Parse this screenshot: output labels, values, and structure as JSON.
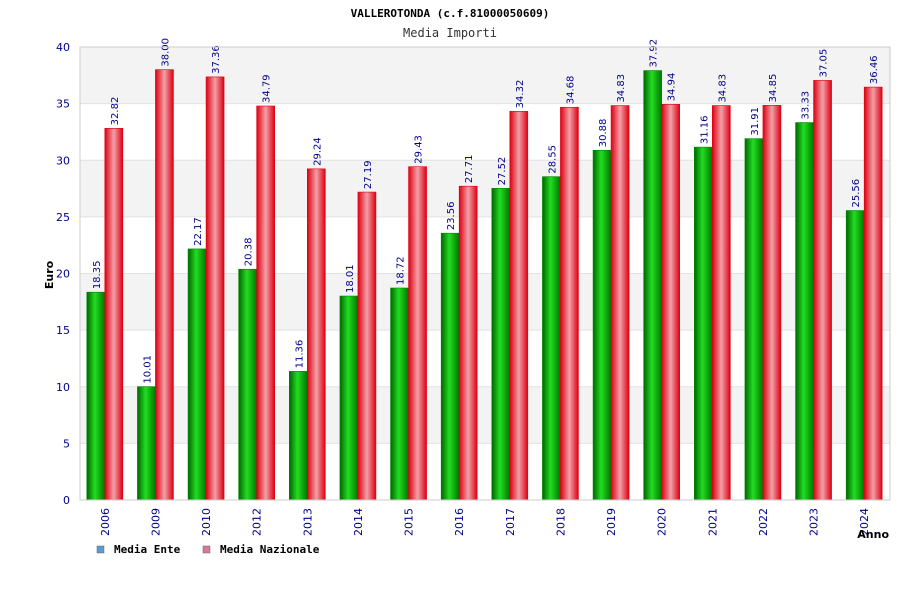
{
  "chart_data": {
    "type": "bar",
    "title": "VALLEROTONDA (c.f.81000050609)",
    "subtitle": "Media Importi",
    "xlabel": "Anno",
    "ylabel": "Euro",
    "ylim": [
      0,
      40
    ],
    "yticks": [
      "0",
      "5",
      "10",
      "15",
      "20",
      "25",
      "30",
      "35",
      "40"
    ],
    "grid": true,
    "legend_position": "bottom-left",
    "categories": [
      "2006",
      "2009",
      "2010",
      "2012",
      "2013",
      "2014",
      "2015",
      "2016",
      "2017",
      "2018",
      "2019",
      "2020",
      "2021",
      "2022",
      "2023",
      "2024"
    ],
    "series": [
      {
        "name": "Media Ente",
        "color": "#00aa00",
        "legend_color": "#5b9bd5",
        "values": [
          18.35,
          10.01,
          22.17,
          20.38,
          11.36,
          18.01,
          18.72,
          23.56,
          27.52,
          28.55,
          30.88,
          37.92,
          31.16,
          31.91,
          33.33,
          25.56
        ],
        "labels": [
          "18.35",
          "10.01",
          "22.17",
          "20.38",
          "11.36",
          "18.01",
          "18.72",
          "23.56",
          "27.52",
          "28.55",
          "30.88",
          "37.92",
          "31.16",
          "31.91",
          "33.33",
          "25.56"
        ]
      },
      {
        "name": "Media Nazionale",
        "color": "#ee1122",
        "legend_color": "#d9779b",
        "values": [
          32.82,
          38.0,
          37.36,
          34.79,
          29.24,
          27.19,
          29.43,
          27.71,
          34.32,
          34.68,
          34.83,
          34.94,
          34.83,
          34.85,
          37.05,
          36.46
        ],
        "labels": [
          "32.82",
          "38.00",
          "37.36",
          "34.79",
          "29.24",
          "27.19",
          "29.43",
          "27.71",
          "34.32",
          "34.68",
          "34.83",
          "34.94",
          "34.83",
          "34.85",
          "37.05",
          "36.46"
        ]
      }
    ]
  }
}
